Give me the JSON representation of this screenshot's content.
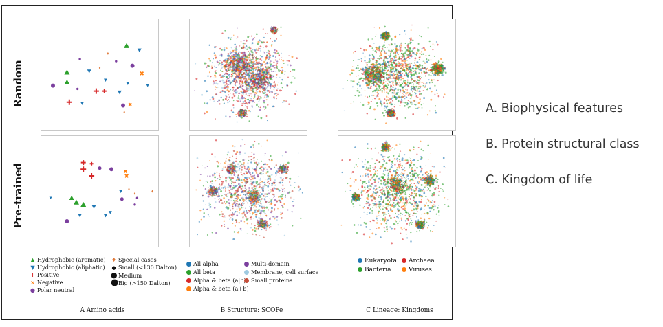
{
  "row_labels": {
    "random": "Random",
    "pretrained": "Pre-trained"
  },
  "captions": {
    "a": "A  Amino acids",
    "b": "B  Structure: SCOPe",
    "c": "C  Lineage: Kingdoms"
  },
  "side_list": [
    "A. Biophysical features",
    "B. Protein structural class",
    "C. Kingdom of life"
  ],
  "colors": {
    "aromatic": "#2ca02c",
    "aliphatic": "#1f77b4",
    "positive": "#d62728",
    "negative": "#ff7f0e",
    "polar": "#7b3f9e",
    "special": "#e07a3a",
    "all_alpha": "#1f77b4",
    "all_beta": "#2ca02c",
    "alpha_beta_ab": "#d62728",
    "alpha_beta_apb": "#ff7f0e",
    "multi_domain": "#7b3f9e",
    "membrane": "#9ecae1",
    "small_proteins": "#c44e3a",
    "eukaryota": "#1f77b4",
    "bacteria": "#2ca02c",
    "archaea": "#d62728",
    "viruses": "#ff7f0e"
  },
  "legend_a": [
    {
      "sym": "▲",
      "color": "#2ca02c",
      "label": "Hydrophobic (aromatic)"
    },
    {
      "sym": "▼",
      "color": "#1f77b4",
      "label": "Hydrophobic (aliphatic)"
    },
    {
      "sym": "+",
      "color": "#d62728",
      "label": "Positive"
    },
    {
      "sym": "×",
      "color": "#ff7f0e",
      "label": "Negative"
    },
    {
      "sym": "●",
      "color": "#7b3f9e",
      "label": "Polar neutral"
    },
    {
      "sym": "♦",
      "color": "#e07a3a",
      "label": "Special cases"
    },
    {
      "sym": "•",
      "color": "#111111",
      "label": "Small (<130 Dalton)"
    },
    {
      "sym": "●",
      "color": "#111111",
      "label": "Medium"
    },
    {
      "sym": "⬤",
      "color": "#111111",
      "label": "Big (>150 Dalton)"
    }
  ],
  "legend_b": [
    {
      "color": "#1f77b4",
      "label": "All alpha"
    },
    {
      "color": "#2ca02c",
      "label": "All beta"
    },
    {
      "color": "#d62728",
      "label": "Alpha & beta (a|b)"
    },
    {
      "color": "#ff7f0e",
      "label": "Alpha & beta (a+b)"
    },
    {
      "color": "#7b3f9e",
      "label": "Multi-domain"
    },
    {
      "color": "#9ecae1",
      "label": "Membrane, cell surface"
    },
    {
      "color": "#c44e3a",
      "label": "Small proteins"
    }
  ],
  "legend_c": [
    {
      "color": "#1f77b4",
      "label": "Eukaryota"
    },
    {
      "color": "#2ca02c",
      "label": "Bacteria"
    },
    {
      "color": "#d62728",
      "label": "Archaea"
    },
    {
      "color": "#ff7f0e",
      "label": "Viruses"
    }
  ]
}
